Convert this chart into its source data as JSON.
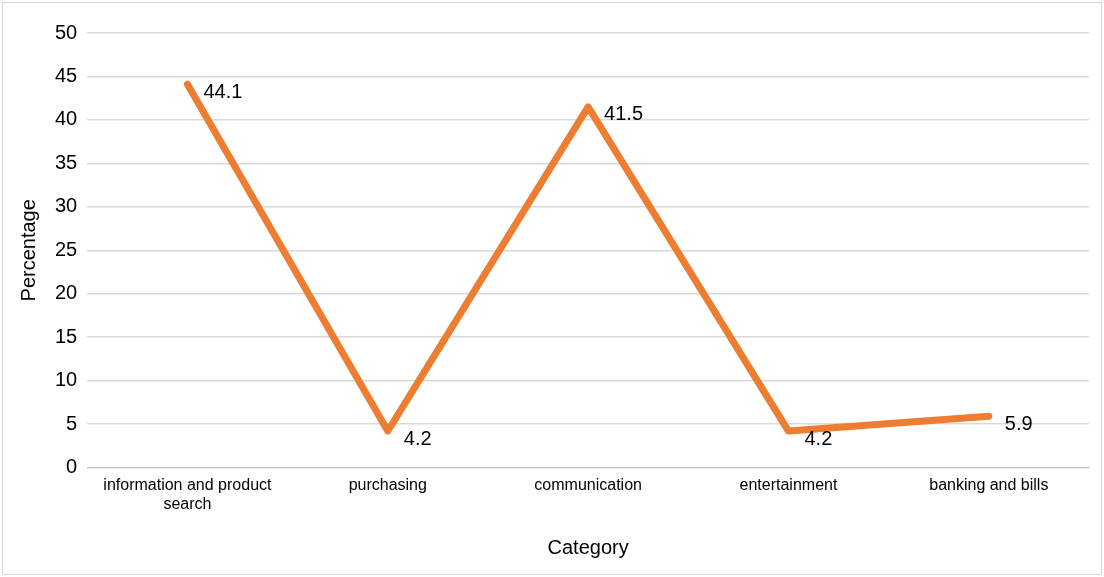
{
  "chart_data": {
    "type": "line",
    "xlabel": "Category",
    "ylabel": "Percentage",
    "categories": [
      "information and product search",
      "purchasing",
      "communication",
      "entertainment",
      "banking and bills"
    ],
    "series": [
      {
        "color": "#ed7d31",
        "values": [
          44.1,
          4.2,
          41.5,
          4.2,
          5.9
        ]
      }
    ],
    "ylim": [
      0,
      50
    ],
    "yticks": [
      0,
      5,
      10,
      15,
      20,
      25,
      30,
      35,
      40,
      45,
      50
    ],
    "grid": "y",
    "data_labels": true,
    "marker": "none",
    "line_style": "solid"
  }
}
